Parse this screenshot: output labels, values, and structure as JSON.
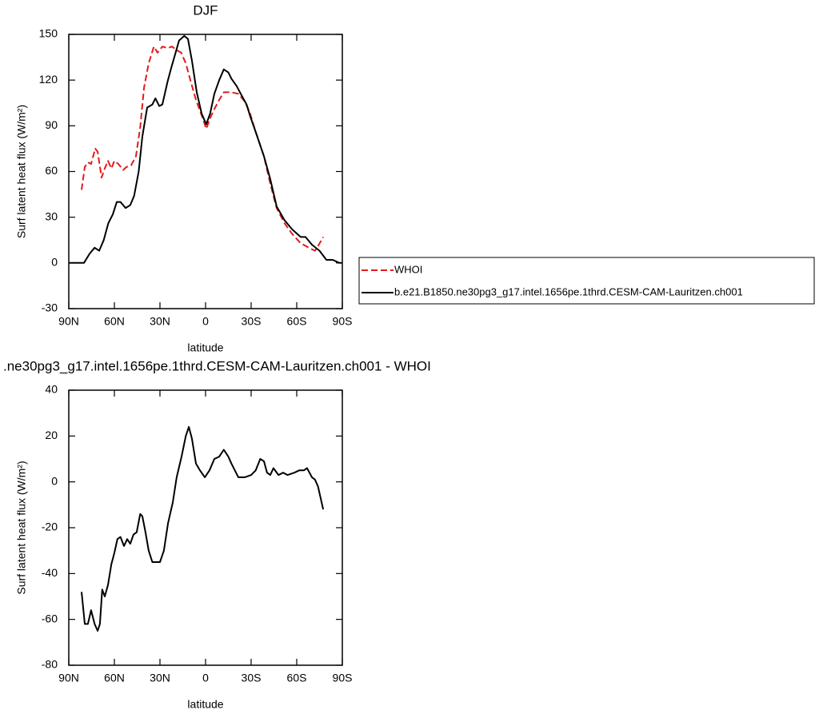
{
  "chart_data": [
    {
      "type": "line",
      "title": "DJF",
      "xlabel": "latitude",
      "ylabel": "Surf latent heat flux (W/m²)",
      "xlim": [
        90,
        -90
      ],
      "xticks": [
        {
          "value": 90,
          "label": "90N"
        },
        {
          "value": 60,
          "label": "60N"
        },
        {
          "value": 30,
          "label": "30N"
        },
        0,
        {
          "value": -30,
          "label": "30S"
        },
        {
          "value": -60,
          "label": "60S"
        },
        {
          "value": -90,
          "label": "90S"
        }
      ],
      "ylim": [
        -30,
        150
      ],
      "yticks": [
        -30,
        0,
        30,
        60,
        90,
        120,
        150
      ],
      "legend": "outside right",
      "series": [
        {
          "name": "WHOI",
          "color": "#e31a1c",
          "line_style": "dashed",
          "x": [
            81.6,
            79.5,
            77.4,
            75.3,
            72.6,
            71,
            68.4,
            66.3,
            64.2,
            62,
            60,
            57.4,
            54.2,
            52,
            49,
            45.8,
            43,
            40.5,
            37.4,
            34,
            31.6,
            28.4,
            25,
            22,
            19.5,
            16,
            13,
            10,
            6.3,
            2.6,
            -0.5,
            -3,
            -5.8,
            -9,
            -12,
            -17,
            -21.6,
            -25.8,
            -29,
            -33,
            -38.4,
            -42.6,
            -46.8,
            -52,
            -57,
            -62.6,
            -68,
            -72,
            -74,
            -77.4
          ],
          "values": [
            48,
            63,
            66,
            65,
            75,
            73,
            56,
            62,
            67,
            62,
            67,
            65,
            61,
            63,
            64,
            70,
            89,
            115,
            131,
            142,
            138,
            142,
            141,
            142,
            140,
            138,
            131,
            120,
            107,
            97,
            88,
            95,
            101,
            107,
            112,
            112,
            111,
            106,
            99,
            86,
            70,
            52,
            36,
            26,
            19,
            13,
            10,
            8,
            11,
            17
          ]
        },
        {
          "name": "b.e21.B1850.ne30pg3_g17.intel.1656pe.1thrd.CESM-CAM-Lauritzen.ch001",
          "color": "#000000",
          "line_style": "solid",
          "x": [
            90,
            80,
            76.3,
            73,
            70,
            67,
            64,
            61,
            58.4,
            56,
            52.6,
            49.5,
            47,
            44,
            41.6,
            38.4,
            35,
            33,
            30.5,
            28.4,
            25,
            22.6,
            20,
            17.4,
            14,
            11.6,
            9,
            5.8,
            2.6,
            -0.5,
            -3,
            -5.8,
            -9,
            -12,
            -15,
            -17,
            -20.5,
            -23.7,
            -27,
            -29.5,
            -33,
            -38.4,
            -42.6,
            -46.8,
            -52,
            -57,
            -62.6,
            -65.8,
            -70,
            -75,
            -79.5,
            -83.7,
            -88,
            -89.5
          ],
          "values": [
            0,
            0,
            6,
            10,
            8,
            15,
            26,
            32,
            40,
            40,
            36,
            38,
            44,
            60,
            83,
            102,
            104,
            108,
            103,
            104,
            119,
            128,
            137,
            146,
            149,
            147,
            133,
            112,
            98,
            91,
            98,
            111,
            120,
            127,
            125,
            121,
            116,
            110,
            104,
            96,
            86,
            70,
            55,
            37,
            28,
            22,
            17,
            17,
            12,
            8,
            2,
            2,
            0,
            0
          ]
        }
      ]
    },
    {
      "type": "line",
      "title": ".ne30pg3_g17.intel.1656pe.1thrd.CESM-CAM-Lauritzen.ch001 - WHOI",
      "xlabel": "latitude",
      "ylabel": "Surf latent heat flux (W/m²)",
      "xlim": [
        90,
        -90
      ],
      "xticks": [
        {
          "value": 90,
          "label": "90N"
        },
        {
          "value": 60,
          "label": "60N"
        },
        {
          "value": 30,
          "label": "30N"
        },
        0,
        {
          "value": -30,
          "label": "30S"
        },
        {
          "value": -60,
          "label": "60S"
        },
        {
          "value": -90,
          "label": "90S"
        }
      ],
      "ylim": [
        -80,
        40
      ],
      "yticks": [
        -80,
        -60,
        -40,
        -20,
        0,
        20,
        40
      ],
      "series": [
        {
          "color": "#000000",
          "line_style": "solid",
          "x": [
            81.6,
            79.5,
            77.4,
            75.3,
            73,
            71,
            69.5,
            68,
            66.3,
            64.2,
            62,
            60,
            58,
            56,
            53.7,
            51.6,
            49.5,
            47.4,
            45.3,
            43,
            41.6,
            39.5,
            37.4,
            35,
            30,
            27.4,
            24.7,
            21.6,
            19,
            15.8,
            13,
            11,
            9,
            6.3,
            3.7,
            0.5,
            -2.6,
            -5.8,
            -9,
            -12,
            -15,
            -17,
            -21.6,
            -25.8,
            -30,
            -33,
            -36,
            -38.4,
            -40.5,
            -42.6,
            -44.7,
            -48,
            -51,
            -54,
            -58.4,
            -61.6,
            -64.7,
            -66.8,
            -70,
            -72,
            -74,
            -77.4
          ],
          "values": [
            -48,
            -62,
            -62,
            -56,
            -62,
            -65,
            -62,
            -47,
            -50,
            -45,
            -36,
            -31,
            -25,
            -24,
            -28,
            -25,
            -27,
            -23,
            -22,
            -14,
            -15,
            -22,
            -30,
            -35,
            -35,
            -30,
            -18,
            -9,
            2,
            11,
            20,
            24,
            19,
            8,
            5,
            2,
            5,
            10,
            11,
            14,
            11,
            8,
            2,
            2,
            3,
            5,
            10,
            9,
            4,
            3,
            6,
            3,
            4,
            3,
            4,
            5,
            5,
            6,
            2,
            1,
            -2,
            -12
          ]
        }
      ]
    }
  ]
}
